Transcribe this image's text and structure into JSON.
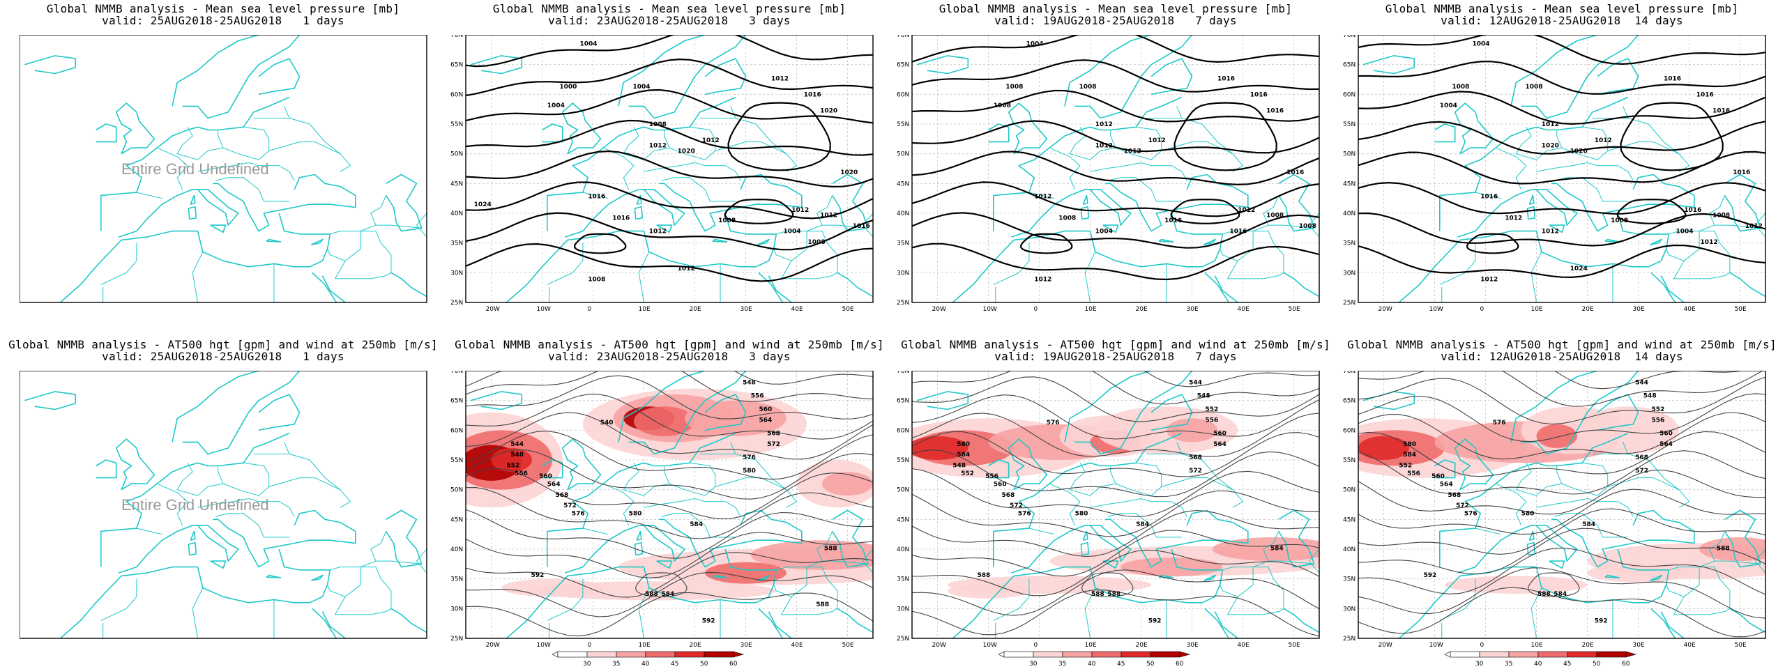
{
  "colors": {
    "coastline": "#1ec8c8",
    "isobar": "#000000",
    "wind_shades": [
      "#ffffff",
      "#fcd4d4",
      "#f7a3a3",
      "#f06b6b",
      "#e02a2a",
      "#b00000"
    ],
    "undefined_text": "#9a9a9a"
  },
  "lat_labels": [
    "70N",
    "65N",
    "60N",
    "55N",
    "50N",
    "45N",
    "40N",
    "35N",
    "30N",
    "25N"
  ],
  "lon_labels": [
    "20W",
    "10W",
    "0",
    "10E",
    "20E",
    "30E",
    "40E",
    "50E"
  ],
  "undefined_text": "Entire Grid Undefined",
  "colorbar": {
    "ticks": [
      "30",
      "35",
      "40",
      "45",
      "50",
      "60"
    ]
  },
  "rows": [
    {
      "name": "mslp",
      "title": "Global NMMB analysis - Mean sea level pressure [mb]",
      "panels": [
        {
          "valid": "valid: 25AUG2018-25AUG2018   1 days",
          "undefined": true,
          "labels": []
        },
        {
          "valid": "valid: 23AUG2018-25AUG2018   3 days",
          "undefined": false,
          "labels": [
            "1004",
            "1000",
            "1004",
            "1004",
            "1008",
            "1012",
            "1012",
            "1016",
            "1020",
            "1020",
            "1012",
            "1020",
            "1016",
            "1016",
            "1012",
            "1008",
            "1004",
            "1012",
            "1016",
            "1012",
            "1008",
            "1012",
            "1008",
            "1024"
          ]
        },
        {
          "valid": "valid: 19AUG2018-25AUG2018   7 days",
          "undefined": false,
          "labels": [
            "1004",
            "1008",
            "1008",
            "1008",
            "1012",
            "1012",
            "1016",
            "1016",
            "1016",
            "1016",
            "1012",
            "1012",
            "1012",
            "1008",
            "1004",
            "1016",
            "1016",
            "1012",
            "1008",
            "1008",
            "1012"
          ]
        },
        {
          "valid": "valid: 12AUG2018-25AUG2018  14 days",
          "undefined": false,
          "labels": [
            "1004",
            "1008",
            "1004",
            "1008",
            "1012",
            "1012",
            "1016",
            "1016",
            "1016",
            "1016",
            "1020",
            "1020",
            "1016",
            "1012",
            "1012",
            "1008",
            "1004",
            "1016",
            "1012",
            "1008",
            "1012",
            "1024",
            "1012"
          ]
        }
      ]
    },
    {
      "name": "hgt500",
      "title": "Global NMMB analysis - AT500 hgt [gpm] and wind at 250mb [m/s]",
      "panels": [
        {
          "valid": "valid: 25AUG2018-25AUG2018   1 days",
          "undefined": true,
          "labels": []
        },
        {
          "valid": "valid: 23AUG2018-25AUG2018   3 days",
          "undefined": false,
          "labels": [
            "548",
            "556",
            "560",
            "564",
            "568",
            "572",
            "576",
            "580",
            "540",
            "544",
            "548",
            "552",
            "556",
            "560",
            "564",
            "568",
            "572",
            "576",
            "580",
            "584",
            "588",
            "592",
            "584",
            "588",
            "592",
            "588"
          ]
        },
        {
          "valid": "valid: 19AUG2018-25AUG2018   7 days",
          "undefined": false,
          "labels": [
            "544",
            "548",
            "552",
            "556",
            "560",
            "564",
            "568",
            "572",
            "576",
            "580",
            "584",
            "548",
            "552",
            "556",
            "560",
            "568",
            "572",
            "576",
            "580",
            "584",
            "588",
            "592",
            "588",
            "584",
            "588"
          ]
        },
        {
          "valid": "valid: 12AUG2018-25AUG2018  14 days",
          "undefined": false,
          "labels": [
            "544",
            "548",
            "552",
            "556",
            "560",
            "564",
            "568",
            "572",
            "576",
            "580",
            "584",
            "552",
            "556",
            "560",
            "564",
            "568",
            "572",
            "576",
            "580",
            "584",
            "588",
            "592",
            "584",
            "588",
            "592"
          ]
        }
      ]
    }
  ]
}
